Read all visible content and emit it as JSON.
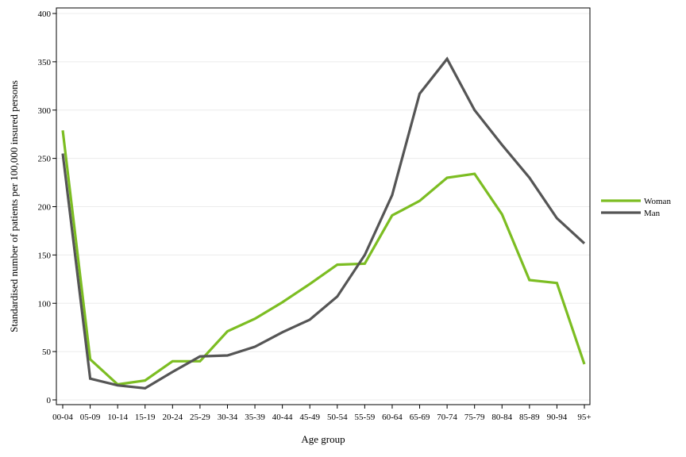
{
  "chart_data": {
    "type": "line",
    "xlabel": "Age group",
    "ylabel": "Standardised number of patients per 100,000 insured persons",
    "ylim": [
      0,
      400
    ],
    "yticks": [
      0,
      50,
      100,
      150,
      200,
      250,
      300,
      350,
      400
    ],
    "grid": true,
    "legend_position": "right",
    "categories": [
      "00-04",
      "05-09",
      "10-14",
      "15-19",
      "20-24",
      "25-29",
      "30-34",
      "35-39",
      "40-44",
      "45-49",
      "50-54",
      "55-59",
      "60-64",
      "65-69",
      "70-74",
      "75-79",
      "80-84",
      "85-89",
      "90-94",
      "95+"
    ],
    "series": [
      {
        "name": "Woman",
        "color": "#7cbd22",
        "values": [
          279,
          42,
          16,
          20,
          40,
          40,
          71,
          84,
          101,
          120,
          140,
          141,
          191,
          206,
          230,
          234,
          192,
          124,
          121,
          37
        ]
      },
      {
        "name": "Man",
        "color": "#555555",
        "values": [
          255,
          22,
          15,
          12,
          29,
          45,
          46,
          55,
          70,
          83,
          107,
          150,
          212,
          317,
          353,
          300,
          264,
          230,
          188,
          162
        ]
      }
    ]
  }
}
